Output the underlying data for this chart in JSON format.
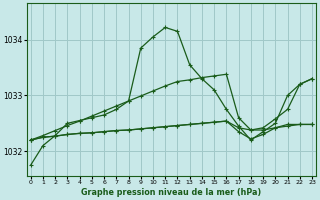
{
  "title": "Graphe pression niveau de la mer (hPa)",
  "background_color": "#c8e8e8",
  "grid_color": "#a0c8c8",
  "line_color": "#1a5c1a",
  "x_ticks": [
    0,
    1,
    2,
    3,
    4,
    5,
    6,
    7,
    8,
    9,
    10,
    11,
    12,
    13,
    14,
    15,
    16,
    17,
    18,
    19,
    20,
    21,
    22,
    23
  ],
  "y_ticks": [
    1032,
    1033,
    1034
  ],
  "ylim": [
    1031.55,
    1034.65
  ],
  "xlim": [
    -0.3,
    23.3
  ],
  "series_main": [
    1031.75,
    1032.1,
    1032.28,
    1032.5,
    1032.55,
    1032.6,
    1032.65,
    1032.75,
    1032.9,
    1033.85,
    1034.05,
    1034.22,
    1034.15,
    1033.55,
    1033.3,
    1033.1,
    1032.75,
    1032.45,
    1032.2,
    1032.35,
    1032.5,
    1033.0,
    1033.2,
    1033.3
  ],
  "series_flat": [
    1032.2,
    1032.25,
    1032.27,
    1032.3,
    1032.32,
    1032.33,
    1032.35,
    1032.37,
    1032.38,
    1032.4,
    1032.42,
    1032.44,
    1032.46,
    1032.48,
    1032.5,
    1032.52,
    1032.54,
    1032.42,
    1032.38,
    1032.38,
    1032.42,
    1032.45,
    1032.48,
    1032.48
  ],
  "series_diag": [
    1032.2,
    1032.28,
    1032.37,
    1032.46,
    1032.54,
    1032.63,
    1032.72,
    1032.81,
    1032.9,
    1032.99,
    1033.08,
    1033.17,
    1033.25,
    1033.28,
    1033.32,
    1033.35,
    1033.38,
    1032.6,
    1032.38,
    1032.42,
    1032.58,
    1032.75,
    1033.2,
    1033.3
  ],
  "series_low": [
    1032.2,
    1032.25,
    1032.27,
    1032.3,
    1032.32,
    1032.33,
    1032.35,
    1032.37,
    1032.38,
    1032.4,
    1032.42,
    1032.44,
    1032.46,
    1032.48,
    1032.5,
    1032.52,
    1032.54,
    1032.35,
    1032.22,
    1032.3,
    1032.42,
    1032.48,
    1032.48,
    1032.48
  ]
}
